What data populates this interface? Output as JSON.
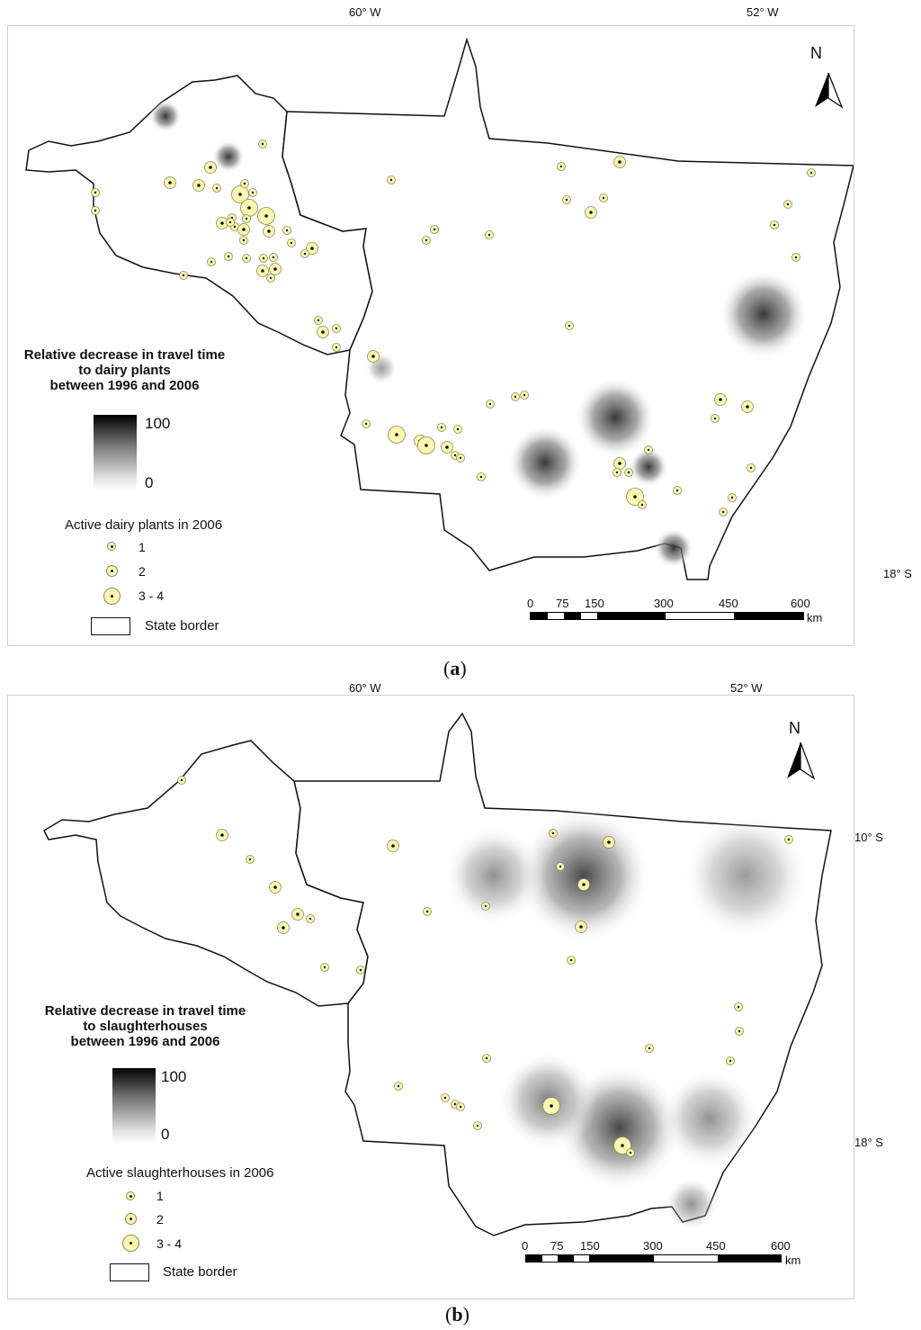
{
  "top_axis": {
    "lon_left": "60° W",
    "lon_right": "52° W"
  },
  "right_axis": {
    "lat_top": "10° S",
    "lat_bottom": "18° S"
  },
  "panels": [
    {
      "caption_letter": "a",
      "legend_title": [
        "Relative decrease in travel time",
        "to dairy plants",
        "between 1996 and 2006"
      ],
      "ramp_max": "100",
      "ramp_min": "0",
      "points_title": "Active dairy plants in 2006",
      "classes": [
        "1",
        "2",
        "3 - 4"
      ],
      "border_label": "State border",
      "scale_ticks": [
        "0",
        "75",
        "150",
        "300",
        "450",
        "600"
      ],
      "scale_unit": "km",
      "north": "N"
    },
    {
      "caption_letter": "b",
      "legend_title": [
        "Relative decrease in travel time",
        "to slaughterhouses",
        "between 1996 and 2006"
      ],
      "ramp_max": "100",
      "ramp_min": "0",
      "points_title": "Active slaughterhouses in 2006",
      "classes": [
        "1",
        "2",
        "3 - 4"
      ],
      "border_label": "State border",
      "scale_ticks": [
        "0",
        "75",
        "150",
        "300",
        "450",
        "600"
      ],
      "scale_unit": "km",
      "north": "N"
    }
  ]
}
